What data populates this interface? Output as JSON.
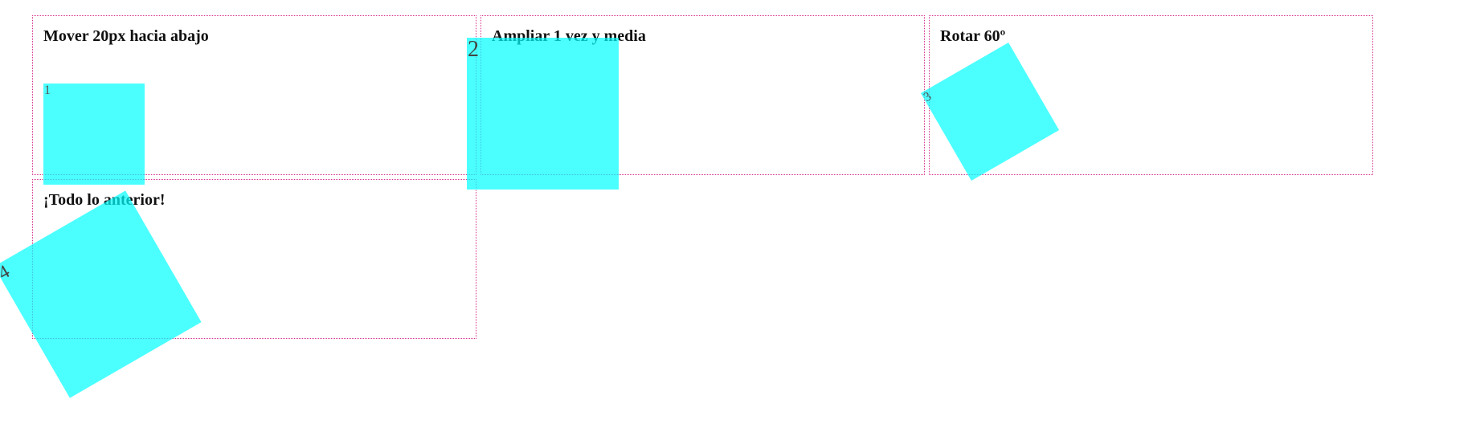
{
  "panels": [
    {
      "title": "Mover 20px hacia abajo",
      "box_label": "1"
    },
    {
      "title": "Ampliar 1 vez y media",
      "box_label": "2"
    },
    {
      "title": "Rotar 60º",
      "box_label": "3"
    },
    {
      "title": "¡Todo lo anterior!",
      "box_label": "4"
    }
  ],
  "colors": {
    "box_fill": "#00ffff",
    "panel_border": "#d6338f",
    "title_text": "#111111"
  }
}
